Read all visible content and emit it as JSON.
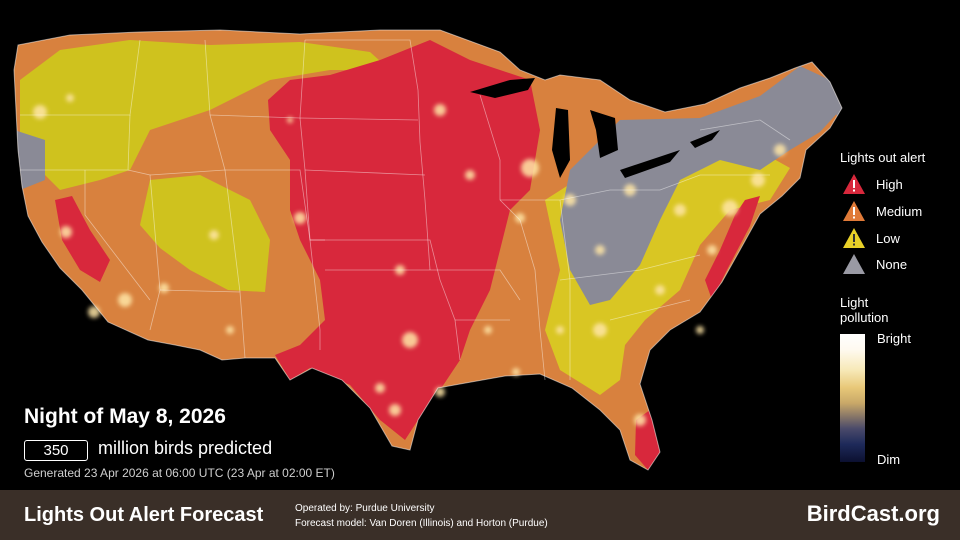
{
  "map": {
    "region": "Contiguous United States",
    "layers": [
      "lights out alert level",
      "light pollution"
    ],
    "alert_colors": {
      "high": "#d8283c",
      "medium": "#d87a3a",
      "low": "#d6c21c",
      "none": "#8a8a96"
    }
  },
  "legend": {
    "alert_title": "Lights out alert",
    "items": [
      {
        "label": "High",
        "icon": "warning-triangle-red-icon",
        "color": "#d8283c"
      },
      {
        "label": "Medium",
        "icon": "warning-triangle-orange-icon",
        "color": "#e07a38"
      },
      {
        "label": "Low",
        "icon": "warning-triangle-yellow-icon",
        "color": "#e8d028"
      },
      {
        "label": "None",
        "icon": "triangle-gray-icon",
        "color": "#9a9aa4"
      }
    ],
    "light_title_line1": "Light",
    "light_title_line2": "pollution",
    "bright_label": "Bright",
    "dim_label": "Dim"
  },
  "summary": {
    "night_title": "Night of May 8, 2026",
    "bird_count": "350",
    "count_suffix": "million birds predicted",
    "generated": "Generated 23 Apr 2026 at 06:00 UTC (23 Apr at 02:00 ET)"
  },
  "footer": {
    "title": "Lights Out Alert Forecast",
    "operated_by": "Operated by: Purdue University",
    "forecast_model": "Forecast model: Van Doren (Illinois) and Horton (Purdue)",
    "site": "BirdCast.org"
  }
}
